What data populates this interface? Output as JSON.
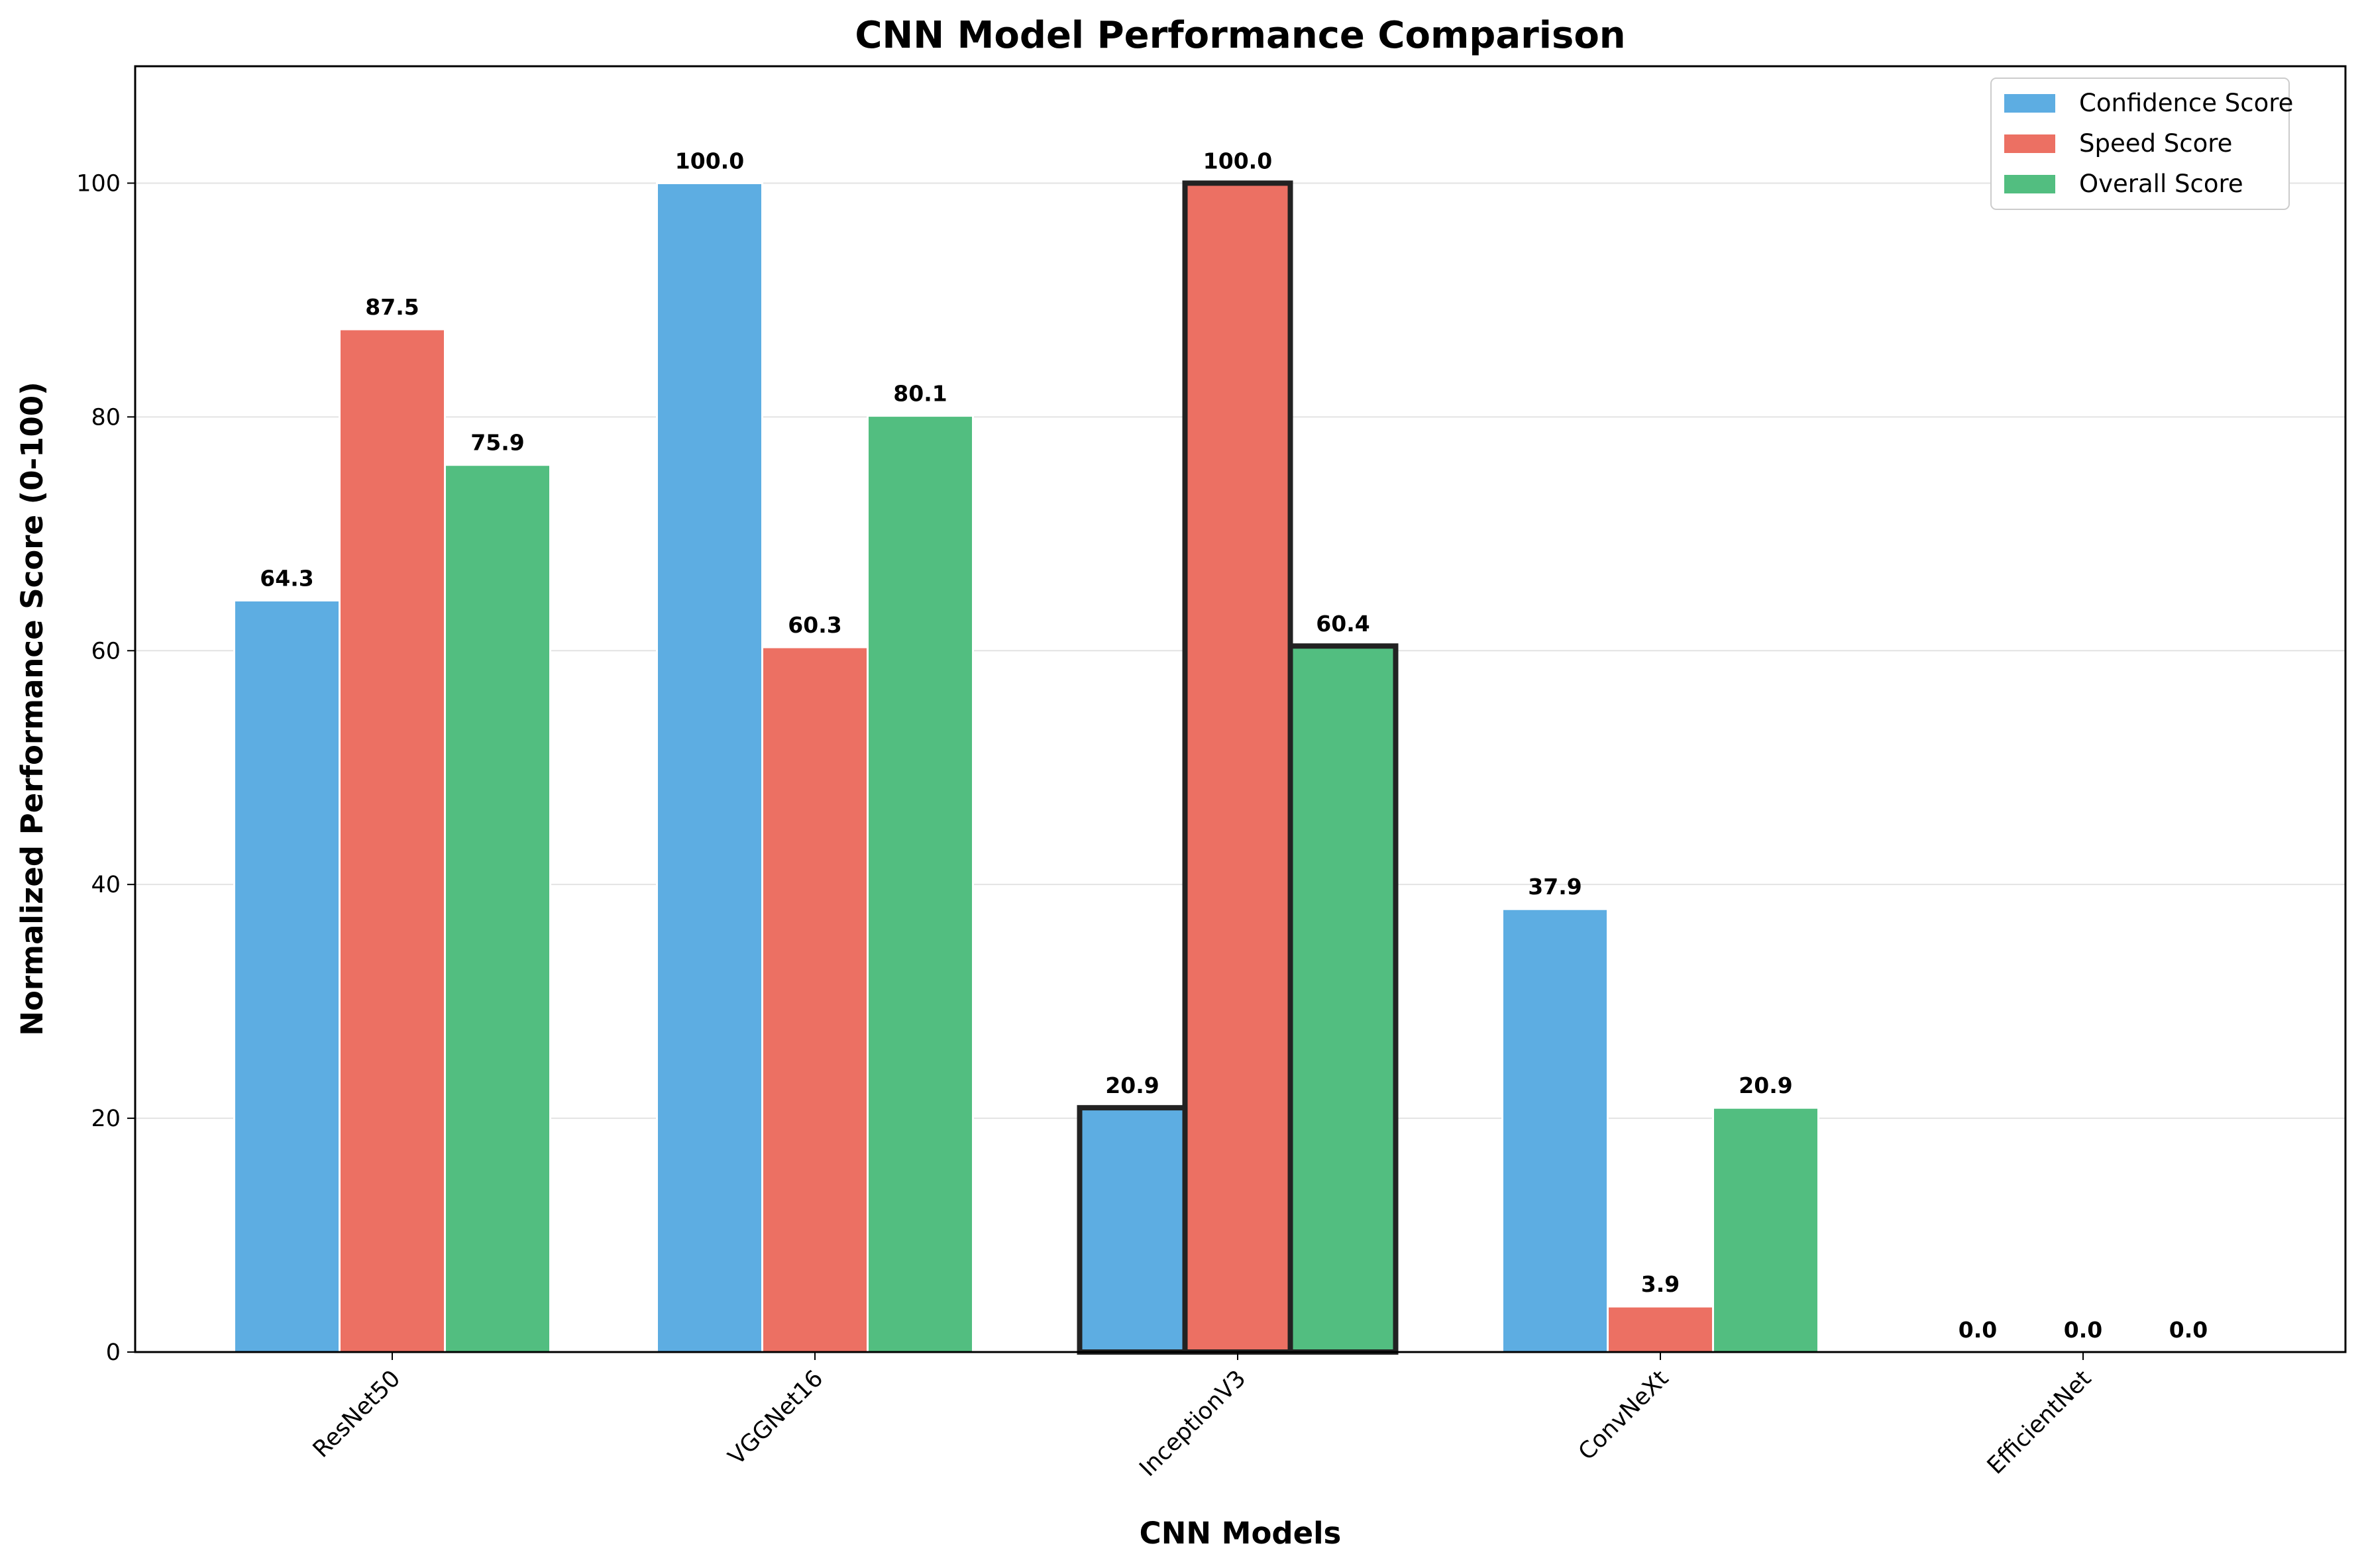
{
  "chart_data": {
    "type": "bar",
    "title": "CNN Model Performance Comparison",
    "xlabel": "CNN Models",
    "ylabel": "Normalized Performance Score (0-100)",
    "categories": [
      "ResNet50",
      "VGGNet16",
      "InceptionV3",
      "ConvNeXt",
      "EfficientNet"
    ],
    "series": [
      {
        "name": "Confidence Score",
        "color": "#5DADE2",
        "values": [
          64.3,
          100.0,
          20.9,
          37.9,
          0.0
        ]
      },
      {
        "name": "Speed Score",
        "color": "#EC7063",
        "values": [
          87.5,
          60.3,
          100.0,
          3.9,
          0.0
        ]
      },
      {
        "name": "Overall Score",
        "color": "#52BE80",
        "values": [
          75.9,
          80.1,
          60.4,
          20.9,
          0.0
        ]
      }
    ],
    "ylim": [
      0,
      110
    ],
    "yticks": [
      0,
      20,
      40,
      60,
      80,
      100
    ],
    "highlighted_category": "InceptionV3",
    "grid": "y",
    "legend_position": "top-right"
  }
}
